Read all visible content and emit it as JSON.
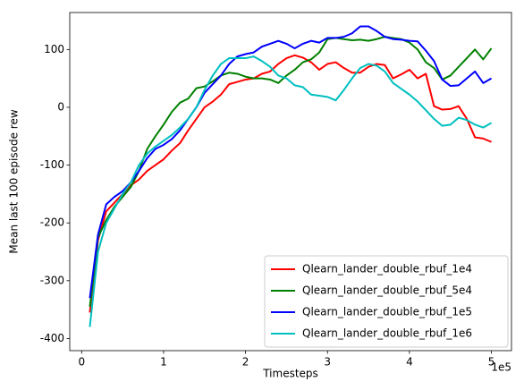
{
  "chart_data": {
    "type": "line",
    "xlabel": "Timesteps",
    "ylabel": "Mean last 100 episode rew",
    "x_offset_label": "1e5",
    "x": [
      10000,
      20000,
      30000,
      40000,
      50000,
      60000,
      70000,
      80000,
      90000,
      100000,
      110000,
      120000,
      130000,
      140000,
      150000,
      160000,
      170000,
      180000,
      190000,
      200000,
      210000,
      220000,
      230000,
      240000,
      250000,
      260000,
      270000,
      280000,
      290000,
      300000,
      310000,
      320000,
      330000,
      340000,
      350000,
      360000,
      370000,
      380000,
      390000,
      400000,
      410000,
      420000,
      430000,
      440000,
      450000,
      460000,
      470000,
      480000,
      490000,
      500000
    ],
    "series": [
      {
        "name": "Qlearn_lander_double_rbuf_1e4",
        "color": "#ff0000",
        "values": [
          -355,
          -230,
          -180,
          -165,
          -150,
          -135,
          -125,
          -110,
          -100,
          -90,
          -75,
          -62,
          -40,
          -20,
          0,
          10,
          22,
          40,
          44,
          48,
          50,
          58,
          62,
          75,
          85,
          90,
          86,
          78,
          65,
          75,
          78,
          68,
          60,
          60,
          70,
          75,
          73,
          50,
          57,
          65,
          50,
          58,
          2,
          -4,
          -3,
          2,
          -20,
          -52,
          -54,
          -60
        ]
      },
      {
        "name": "Qlearn_lander_double_rbuf_5e4",
        "color": "#008000",
        "values": [
          -345,
          -225,
          -195,
          -172,
          -155,
          -138,
          -110,
          -72,
          -50,
          -30,
          -8,
          8,
          15,
          33,
          36,
          45,
          55,
          60,
          58,
          53,
          50,
          50,
          48,
          42,
          55,
          65,
          78,
          83,
          95,
          118,
          120,
          118,
          116,
          117,
          115,
          118,
          122,
          120,
          118,
          112,
          100,
          78,
          68,
          48,
          55,
          70,
          85,
          100,
          83,
          102
        ]
      },
      {
        "name": "Qlearn_lander_double_rbuf_1e5",
        "color": "#0000ff",
        "values": [
          -330,
          -220,
          -168,
          -155,
          -145,
          -130,
          -110,
          -88,
          -72,
          -65,
          -55,
          -40,
          -20,
          0,
          25,
          40,
          55,
          75,
          88,
          92,
          95,
          105,
          110,
          115,
          110,
          102,
          110,
          115,
          112,
          120,
          120,
          122,
          128,
          140,
          140,
          132,
          122,
          118,
          117,
          115,
          114,
          98,
          80,
          48,
          37,
          38,
          50,
          62,
          42,
          50
        ]
      },
      {
        "name": "Qlearn_lander_double_rbuf_1e6",
        "color": "#00bfbf",
        "values": [
          -380,
          -250,
          -200,
          -175,
          -150,
          -130,
          -100,
          -80,
          -68,
          -58,
          -48,
          -35,
          -20,
          0,
          30,
          55,
          75,
          85,
          85,
          85,
          88,
          80,
          70,
          55,
          50,
          38,
          35,
          22,
          20,
          18,
          12,
          30,
          50,
          68,
          75,
          72,
          62,
          42,
          32,
          22,
          10,
          -5,
          -20,
          -32,
          -30,
          -18,
          -22,
          -30,
          -35,
          -27
        ]
      }
    ],
    "xlim": [
      -14500,
      524500
    ],
    "xticks": [
      {
        "value": 0,
        "label": "0"
      },
      {
        "value": 100000,
        "label": "1"
      },
      {
        "value": 200000,
        "label": "2"
      },
      {
        "value": 300000,
        "label": "3"
      },
      {
        "value": 400000,
        "label": "4"
      },
      {
        "value": 500000,
        "label": "5"
      }
    ],
    "ylim": [
      -421,
      164
    ],
    "yticks": [
      -400,
      -300,
      -200,
      -100,
      0,
      100
    ],
    "grid": false,
    "legend": "lower right"
  }
}
